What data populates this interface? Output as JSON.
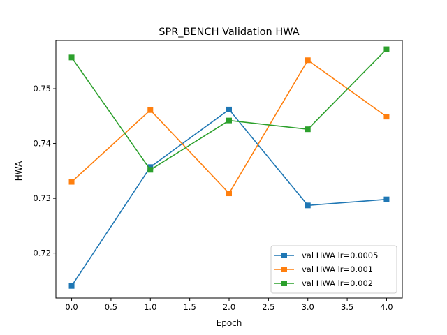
{
  "chart_data": {
    "type": "line",
    "title": "SPR_BENCH Validation HWA",
    "xlabel": "Epoch",
    "ylabel": "HWA",
    "x": [
      0,
      1,
      2,
      3,
      4
    ],
    "xlim": [
      -0.2,
      4.2
    ],
    "ylim": [
      0.7118,
      0.7588
    ],
    "xticks": [
      0.0,
      0.5,
      1.0,
      1.5,
      2.0,
      2.5,
      3.0,
      3.5,
      4.0
    ],
    "xtick_labels": [
      "0.0",
      "0.5",
      "1.0",
      "1.5",
      "2.0",
      "2.5",
      "3.0",
      "3.5",
      "4.0"
    ],
    "yticks": [
      0.72,
      0.73,
      0.74,
      0.75
    ],
    "ytick_labels": [
      "0.72",
      "0.73",
      "0.74",
      "0.75"
    ],
    "grid": false,
    "legend_position": "lower-right",
    "marker": "square",
    "series": [
      {
        "name": "val HWA lr=0.0005",
        "color": "#1f77b4",
        "values": [
          0.714,
          0.7357,
          0.7462,
          0.7287,
          0.7298
        ]
      },
      {
        "name": "val HWA lr=0.001",
        "color": "#ff7f0e",
        "values": [
          0.733,
          0.7461,
          0.7309,
          0.7552,
          0.7449
        ]
      },
      {
        "name": "val HWA lr=0.002",
        "color": "#2ca02c",
        "values": [
          0.7557,
          0.7352,
          0.7442,
          0.7426,
          0.7572
        ]
      }
    ]
  }
}
